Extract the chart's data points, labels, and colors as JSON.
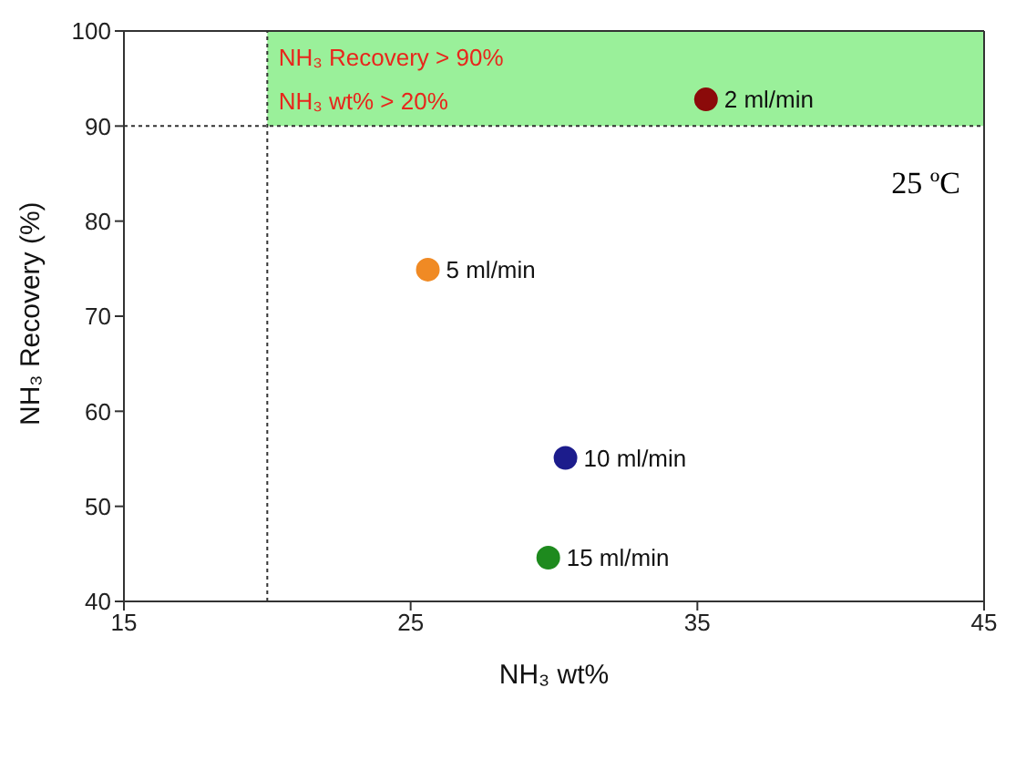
{
  "chart_data": {
    "type": "scatter",
    "xlabel": "NH₃ wt%",
    "ylabel": "NH₃ Recovery (%)",
    "x": [
      35.3,
      25.6,
      30.4,
      29.8
    ],
    "values": [
      92.8,
      74.9,
      55.1,
      44.6
    ],
    "colors": [
      "#8b0a0a",
      "#f08a24",
      "#1c1c8c",
      "#1e8a1e"
    ],
    "marker": "circle",
    "xlim": [
      15,
      45
    ],
    "xticks": [
      15,
      25,
      35,
      45
    ],
    "ylim": [
      40,
      100
    ],
    "yticks": [
      40,
      50,
      60,
      70,
      80,
      90,
      100
    ],
    "grid": false,
    "ref_lines": [
      {
        "axis": "x",
        "value": 20,
        "line_style": "dotted"
      },
      {
        "axis": "y",
        "value": 90,
        "line_style": "dotted"
      }
    ],
    "bands": [
      {
        "axis": "y",
        "from": 90,
        "to": 100,
        "color": "#9af09a"
      }
    ],
    "annotations": [
      {
        "text": "2 ml/min",
        "x": 35.3,
        "y": 92.8
      },
      {
        "text": "5 ml/min",
        "x": 25.6,
        "y": 74.9
      },
      {
        "text": "10 ml/min",
        "x": 30.4,
        "y": 55.1
      },
      {
        "text": "15 ml/min",
        "x": 29.8,
        "y": 44.6
      },
      "NH₃ Recovery > 90%",
      "NH₃ wt% > 20%",
      "25 ºC"
    ]
  }
}
